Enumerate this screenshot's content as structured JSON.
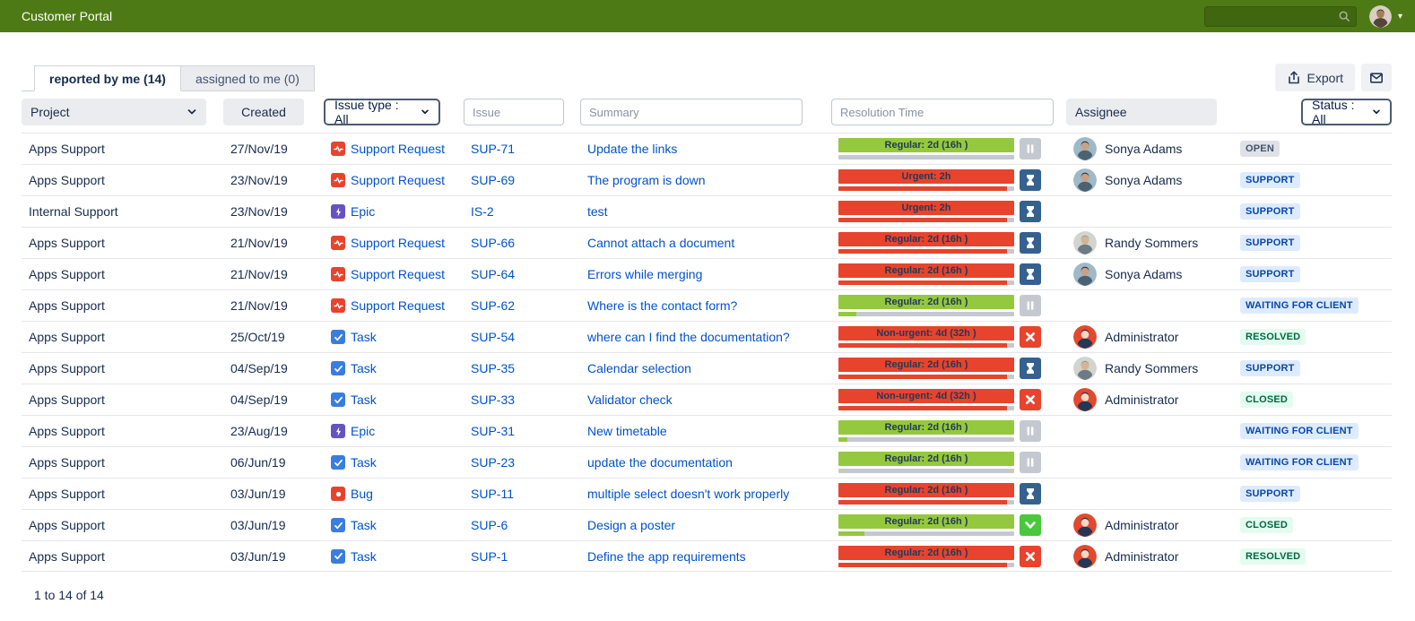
{
  "navbar": {
    "title": "Customer Portal",
    "search_value": ""
  },
  "tabs": [
    {
      "label": "reported by me (14)",
      "active": true
    },
    {
      "label": "assigned to me (0)",
      "active": false
    }
  ],
  "toolbar": {
    "export_label": "Export"
  },
  "filters": {
    "project": "Project",
    "created": "Created",
    "issue_type": "Issue type : All",
    "issue_placeholder": "Issue",
    "summary_placeholder": "Summary",
    "resolution_placeholder": "Resolution Time",
    "assignee": "Assignee",
    "status": "Status : All"
  },
  "colors": {
    "navbar_green": "#4e7a15",
    "link_blue": "#0052cc",
    "sla_green": "#94c83e",
    "sla_red": "#e8432d",
    "hourglass_blue": "#35618e",
    "check_green": "#49c83c",
    "support_request_icon": "#e8432d",
    "epic_icon": "#6554c0",
    "task_icon": "#3a7de0",
    "bug_icon": "#e5432d"
  },
  "rows": [
    {
      "project": "Apps Support",
      "created": "27/Nov/19",
      "type": "Support Request",
      "type_icon": "support-request",
      "key": "SUP-71",
      "summary": "Update the links",
      "sla": {
        "label": "Regular: 2d (16h )",
        "color": "green",
        "progress": 0,
        "icon": "pause"
      },
      "assignee": "Sonya Adams",
      "avatar": "sonya",
      "status": "OPEN",
      "status_color": "gray"
    },
    {
      "project": "Apps Support",
      "created": "23/Nov/19",
      "type": "Support Request",
      "type_icon": "support-request",
      "key": "SUP-69",
      "summary": "The program is down",
      "sla": {
        "label": "Urgent: 2h",
        "color": "red",
        "progress": 96,
        "icon": "hourglass"
      },
      "assignee": "Sonya Adams",
      "avatar": "sonya",
      "status": "SUPPORT",
      "status_color": "blue"
    },
    {
      "project": "Internal Support",
      "created": "23/Nov/19",
      "type": "Epic",
      "type_icon": "epic",
      "key": "IS-2",
      "summary": "test",
      "sla": {
        "label": "Urgent: 2h",
        "color": "red",
        "progress": 96,
        "icon": "hourglass"
      },
      "assignee": "",
      "avatar": "",
      "status": "SUPPORT",
      "status_color": "blue"
    },
    {
      "project": "Apps Support",
      "created": "21/Nov/19",
      "type": "Support Request",
      "type_icon": "support-request",
      "key": "SUP-66",
      "summary": "Cannot attach a document",
      "sla": {
        "label": "Regular: 2d (16h )",
        "color": "red",
        "progress": 96,
        "icon": "hourglass"
      },
      "assignee": "Randy Sommers",
      "avatar": "randy",
      "status": "SUPPORT",
      "status_color": "blue"
    },
    {
      "project": "Apps Support",
      "created": "21/Nov/19",
      "type": "Support Request",
      "type_icon": "support-request",
      "key": "SUP-64",
      "summary": "Errors while merging",
      "sla": {
        "label": "Regular: 2d (16h )",
        "color": "red",
        "progress": 96,
        "icon": "hourglass"
      },
      "assignee": "Sonya Adams",
      "avatar": "sonya",
      "status": "SUPPORT",
      "status_color": "blue"
    },
    {
      "project": "Apps Support",
      "created": "21/Nov/19",
      "type": "Support Request",
      "type_icon": "support-request",
      "key": "SUP-62",
      "summary": "Where is the contact form?",
      "sla": {
        "label": "Regular: 2d (16h )",
        "color": "green",
        "progress": 10,
        "icon": "pause"
      },
      "assignee": "",
      "avatar": "",
      "status": "WAITING FOR CLIENT",
      "status_color": "blue"
    },
    {
      "project": "Apps Support",
      "created": "25/Oct/19",
      "type": "Task",
      "type_icon": "task",
      "key": "SUP-54",
      "summary": "where can I find the documentation?",
      "sla": {
        "label": "Non-urgent: 4d (32h )",
        "color": "red",
        "progress": 96,
        "icon": "x"
      },
      "assignee": "Administrator",
      "avatar": "admin",
      "status": "RESOLVED",
      "status_color": "green"
    },
    {
      "project": "Apps Support",
      "created": "04/Sep/19",
      "type": "Task",
      "type_icon": "task",
      "key": "SUP-35",
      "summary": "Calendar selection",
      "sla": {
        "label": "Regular: 2d (16h )",
        "color": "red",
        "progress": 96,
        "icon": "hourglass"
      },
      "assignee": "Randy Sommers",
      "avatar": "randy",
      "status": "SUPPORT",
      "status_color": "blue"
    },
    {
      "project": "Apps Support",
      "created": "04/Sep/19",
      "type": "Task",
      "type_icon": "task",
      "key": "SUP-33",
      "summary": "Validator check",
      "sla": {
        "label": "Non-urgent: 4d (32h )",
        "color": "red",
        "progress": 96,
        "icon": "x"
      },
      "assignee": "Administrator",
      "avatar": "admin",
      "status": "CLOSED",
      "status_color": "green"
    },
    {
      "project": "Apps Support",
      "created": "23/Aug/19",
      "type": "Epic",
      "type_icon": "epic",
      "key": "SUP-31",
      "summary": "New timetable",
      "sla": {
        "label": "Regular: 2d (16h )",
        "color": "green",
        "progress": 5,
        "icon": "pause"
      },
      "assignee": "",
      "avatar": "",
      "status": "WAITING FOR CLIENT",
      "status_color": "blue"
    },
    {
      "project": "Apps Support",
      "created": "06/Jun/19",
      "type": "Task",
      "type_icon": "task",
      "key": "SUP-23",
      "summary": "update the documentation",
      "sla": {
        "label": "Regular: 2d (16h )",
        "color": "green",
        "progress": 0,
        "icon": "pause"
      },
      "assignee": "",
      "avatar": "",
      "status": "WAITING FOR CLIENT",
      "status_color": "blue"
    },
    {
      "project": "Apps Support",
      "created": "03/Jun/19",
      "type": "Bug",
      "type_icon": "bug",
      "key": "SUP-11",
      "summary": "multiple select doesn't work properly",
      "sla": {
        "label": "Regular: 2d (16h )",
        "color": "red",
        "progress": 96,
        "icon": "hourglass"
      },
      "assignee": "",
      "avatar": "",
      "status": "SUPPORT",
      "status_color": "blue"
    },
    {
      "project": "Apps Support",
      "created": "03/Jun/19",
      "type": "Task",
      "type_icon": "task",
      "key": "SUP-6",
      "summary": "Design a poster",
      "sla": {
        "label": "Regular: 2d (16h )",
        "color": "green",
        "progress": 15,
        "icon": "check"
      },
      "assignee": "Administrator",
      "avatar": "admin",
      "status": "CLOSED",
      "status_color": "green"
    },
    {
      "project": "Apps Support",
      "created": "03/Jun/19",
      "type": "Task",
      "type_icon": "task",
      "key": "SUP-1",
      "summary": "Define the app requirements",
      "sla": {
        "label": "Regular: 2d (16h )",
        "color": "red",
        "progress": 96,
        "icon": "x"
      },
      "assignee": "Administrator",
      "avatar": "admin",
      "status": "RESOLVED",
      "status_color": "green"
    }
  ],
  "footer": {
    "count": "1 to 14 of 14"
  }
}
